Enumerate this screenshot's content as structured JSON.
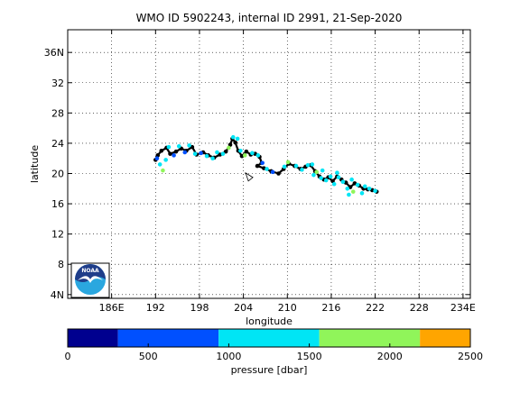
{
  "chart_data": {
    "type": "scatter",
    "title": "WMO ID 5902243, internal ID 2991, 21-Sep-2020",
    "xlabel": "longitude",
    "ylabel": "latitude",
    "xlim": [
      180,
      235
    ],
    "ylim": [
      3.5,
      39
    ],
    "grid": "on (dotted)",
    "x_ticks": [
      {
        "value": 186,
        "label": "186E"
      },
      {
        "value": 192,
        "label": "192"
      },
      {
        "value": 198,
        "label": "198"
      },
      {
        "value": 204,
        "label": "204"
      },
      {
        "value": 210,
        "label": "210"
      },
      {
        "value": 216,
        "label": "216"
      },
      {
        "value": 222,
        "label": "222"
      },
      {
        "value": 228,
        "label": "228"
      },
      {
        "value": 234,
        "label": "234E"
      }
    ],
    "y_ticks": [
      {
        "value": 4,
        "label": "4N"
      },
      {
        "value": 8,
        "label": "8"
      },
      {
        "value": 12,
        "label": "12"
      },
      {
        "value": 16,
        "label": "16"
      },
      {
        "value": 20,
        "label": "20"
      },
      {
        "value": 24,
        "label": "24"
      },
      {
        "value": 28,
        "label": "28"
      },
      {
        "value": 32,
        "label": "32"
      },
      {
        "value": 36,
        "label": "36N"
      }
    ],
    "track": [
      [
        192.0,
        21.8
      ],
      [
        192.3,
        22.4
      ],
      [
        192.8,
        23.0
      ],
      [
        193.5,
        23.4
      ],
      [
        194.0,
        22.6
      ],
      [
        194.8,
        22.9
      ],
      [
        195.5,
        23.3
      ],
      [
        196.2,
        23.0
      ],
      [
        197.0,
        23.5
      ],
      [
        197.6,
        22.5
      ],
      [
        198.5,
        22.8
      ],
      [
        199.2,
        22.4
      ],
      [
        200.0,
        22.1
      ],
      [
        200.8,
        22.5
      ],
      [
        201.6,
        22.9
      ],
      [
        202.2,
        23.8
      ],
      [
        202.5,
        24.6
      ],
      [
        202.9,
        24.1
      ],
      [
        203.3,
        23.0
      ],
      [
        203.8,
        22.3
      ],
      [
        204.4,
        22.9
      ],
      [
        205.0,
        22.5
      ],
      [
        205.6,
        22.6
      ],
      [
        206.2,
        22.2
      ],
      [
        206.5,
        21.4
      ],
      [
        205.9,
        21.0
      ],
      [
        206.8,
        20.7
      ],
      [
        207.8,
        20.3
      ],
      [
        208.8,
        20.0
      ],
      [
        209.5,
        20.6
      ],
      [
        210.2,
        21.3
      ],
      [
        211.0,
        21.0
      ],
      [
        211.8,
        20.6
      ],
      [
        212.5,
        20.9
      ],
      [
        213.2,
        21.1
      ],
      [
        213.8,
        20.3
      ],
      [
        214.4,
        19.6
      ],
      [
        215.0,
        19.2
      ],
      [
        215.6,
        19.5
      ],
      [
        216.2,
        19.0
      ],
      [
        216.8,
        19.6
      ],
      [
        217.4,
        19.2
      ],
      [
        218.0,
        18.8
      ],
      [
        218.6,
        18.2
      ],
      [
        219.2,
        18.7
      ],
      [
        219.8,
        18.4
      ],
      [
        220.4,
        18.0
      ],
      [
        221.0,
        17.9
      ],
      [
        221.6,
        17.8
      ],
      [
        222.2,
        17.6
      ]
    ],
    "profiles": [
      [
        192.2,
        22.0,
        800
      ],
      [
        192.6,
        21.2,
        1200
      ],
      [
        193.0,
        20.4,
        1800
      ],
      [
        193.4,
        21.8,
        1000
      ],
      [
        193.8,
        23.5,
        1400
      ],
      [
        194.5,
        22.4,
        900
      ],
      [
        195.2,
        23.6,
        1100
      ],
      [
        196.0,
        22.8,
        600
      ],
      [
        196.6,
        23.7,
        1300
      ],
      [
        197.4,
        22.6,
        1000
      ],
      [
        198.2,
        22.7,
        700
      ],
      [
        199.0,
        22.3,
        1500
      ],
      [
        199.8,
        22.0,
        1100
      ],
      [
        201.2,
        22.6,
        1000
      ],
      [
        202.0,
        23.4,
        1800
      ],
      [
        202.6,
        24.8,
        1400
      ],
      [
        203.2,
        24.6,
        1000
      ],
      [
        203.6,
        23.0,
        1200
      ],
      [
        204.2,
        22.4,
        1700
      ],
      [
        205.2,
        22.7,
        1000
      ],
      [
        206.0,
        22.4,
        1200
      ],
      [
        206.6,
        21.4,
        800
      ],
      [
        207.2,
        20.6,
        1300
      ],
      [
        208.0,
        20.2,
        900
      ],
      [
        209.6,
        20.9,
        1000
      ],
      [
        210.1,
        21.5,
        1600
      ],
      [
        211.2,
        21.0,
        1100
      ],
      [
        212.0,
        20.5,
        1500
      ],
      [
        212.8,
        21.1,
        1000
      ],
      [
        213.4,
        21.2,
        1300
      ],
      [
        214.0,
        20.2,
        1700
      ],
      [
        214.6,
        19.4,
        1000
      ],
      [
        215.3,
        19.1,
        1200
      ],
      [
        215.9,
        19.6,
        1000
      ],
      [
        216.4,
        18.6,
        1500
      ],
      [
        217.0,
        19.5,
        1100
      ],
      [
        217.6,
        18.9,
        1400
      ],
      [
        218.2,
        18.0,
        1000
      ],
      [
        218.4,
        17.2,
        1300
      ],
      [
        219.0,
        17.6,
        1600
      ],
      [
        219.6,
        18.5,
        1100
      ],
      [
        220.2,
        17.4,
        1000
      ],
      [
        220.6,
        18.3,
        1300
      ],
      [
        221.2,
        18.0,
        1100
      ],
      [
        222.0,
        17.7,
        1000
      ],
      [
        214.8,
        20.4,
        1400
      ],
      [
        216.8,
        20.1,
        1000
      ],
      [
        218.8,
        19.2,
        1200
      ],
      [
        213.6,
        19.8,
        1100
      ],
      [
        200.4,
        22.8,
        1000
      ]
    ],
    "float_position": {
      "x": 204.8,
      "y": 19.6
    },
    "colorbar": {
      "label": "pressure [dbar]",
      "range": [
        0,
        2500
      ],
      "tick_labels": [
        "0",
        "500",
        "1000",
        "1500",
        "2000",
        "2500"
      ],
      "bands": [
        {
          "from": 0,
          "to": 312,
          "color": "#00008f"
        },
        {
          "from": 312,
          "to": 937,
          "color": "#0050ff"
        },
        {
          "from": 937,
          "to": 1562,
          "color": "#00e5f5"
        },
        {
          "from": 1562,
          "to": 2187,
          "color": "#90f55a"
        },
        {
          "from": 2187,
          "to": 2500,
          "color": "#ffa500"
        }
      ]
    }
  },
  "logo": {
    "text": "NOAA",
    "colors": {
      "top": "#1f3d8a",
      "bottom": "#2aa7df",
      "gull": "#ffffff"
    }
  }
}
